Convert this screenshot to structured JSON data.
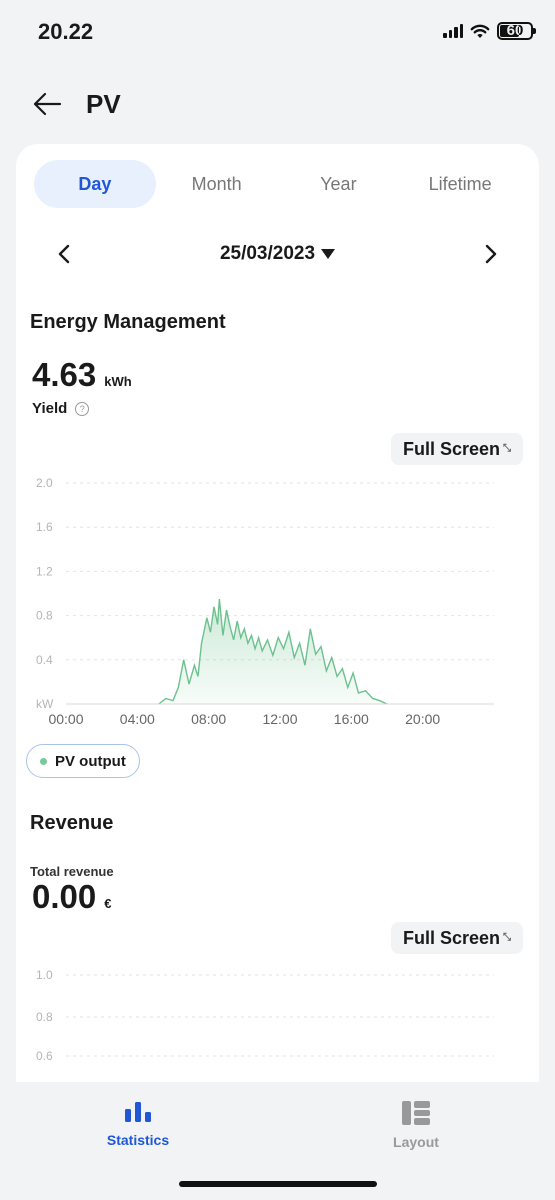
{
  "status": {
    "time": "20.22",
    "battery": "60"
  },
  "header": {
    "title": "PV",
    "back_icon": "arrow-left-icon"
  },
  "tabs": [
    {
      "label": "Day",
      "active": true
    },
    {
      "label": "Month",
      "active": false
    },
    {
      "label": "Year",
      "active": false
    },
    {
      "label": "Lifetime",
      "active": false
    }
  ],
  "date": {
    "value": "25/03/2023"
  },
  "energy": {
    "title": "Energy Management",
    "value": "4.63",
    "unit": "kWh",
    "label": "Yield",
    "fullscreen": "Full Screen"
  },
  "legend": {
    "pv_output": "PV output"
  },
  "revenue": {
    "title": "Revenue",
    "label": "Total revenue",
    "value": "0.00",
    "unit": "€",
    "fullscreen": "Full Screen"
  },
  "nav": {
    "statistics": "Statistics",
    "layout": "Layout"
  },
  "colors": {
    "accent": "#1f57d6",
    "pv_line": "#6cc18e",
    "pv_fill": "#e7f6ec",
    "tab_active_bg": "#e8f0fd"
  },
  "chart_data": [
    {
      "type": "area",
      "ylabel": "kW",
      "yticks": [
        "2.0",
        "1.6",
        "1.2",
        "0.8",
        "0.4",
        "kW"
      ],
      "xticks": [
        "00:00",
        "04:00",
        "08:00",
        "12:00",
        "16:00",
        "20:00"
      ],
      "ylim": [
        0,
        2.0
      ],
      "xlim": [
        0,
        24
      ],
      "grid": true,
      "series": [
        {
          "name": "PV output",
          "x": [
            5.2,
            5.6,
            6.0,
            6.3,
            6.6,
            6.9,
            7.2,
            7.4,
            7.6,
            7.9,
            8.1,
            8.3,
            8.5,
            8.6,
            8.8,
            9.0,
            9.2,
            9.4,
            9.6,
            9.8,
            10.0,
            10.2,
            10.4,
            10.6,
            10.8,
            11.0,
            11.3,
            11.6,
            11.9,
            12.2,
            12.5,
            12.8,
            13.1,
            13.4,
            13.7,
            14.0,
            14.3,
            14.6,
            14.9,
            15.2,
            15.5,
            15.8,
            16.1,
            16.4,
            16.8,
            17.2,
            17.6,
            18.0
          ],
          "values": [
            0.0,
            0.05,
            0.03,
            0.15,
            0.4,
            0.18,
            0.35,
            0.25,
            0.55,
            0.78,
            0.65,
            0.88,
            0.72,
            0.95,
            0.62,
            0.85,
            0.7,
            0.58,
            0.75,
            0.6,
            0.68,
            0.55,
            0.62,
            0.5,
            0.6,
            0.48,
            0.58,
            0.44,
            0.6,
            0.5,
            0.65,
            0.42,
            0.55,
            0.35,
            0.68,
            0.45,
            0.52,
            0.3,
            0.42,
            0.25,
            0.32,
            0.15,
            0.28,
            0.1,
            0.12,
            0.05,
            0.03,
            0.0
          ]
        }
      ]
    },
    {
      "type": "bar",
      "yticks": [
        "1.0",
        "0.8",
        "0.6"
      ],
      "ylim": [
        0,
        1.0
      ],
      "grid": true,
      "series": []
    }
  ]
}
